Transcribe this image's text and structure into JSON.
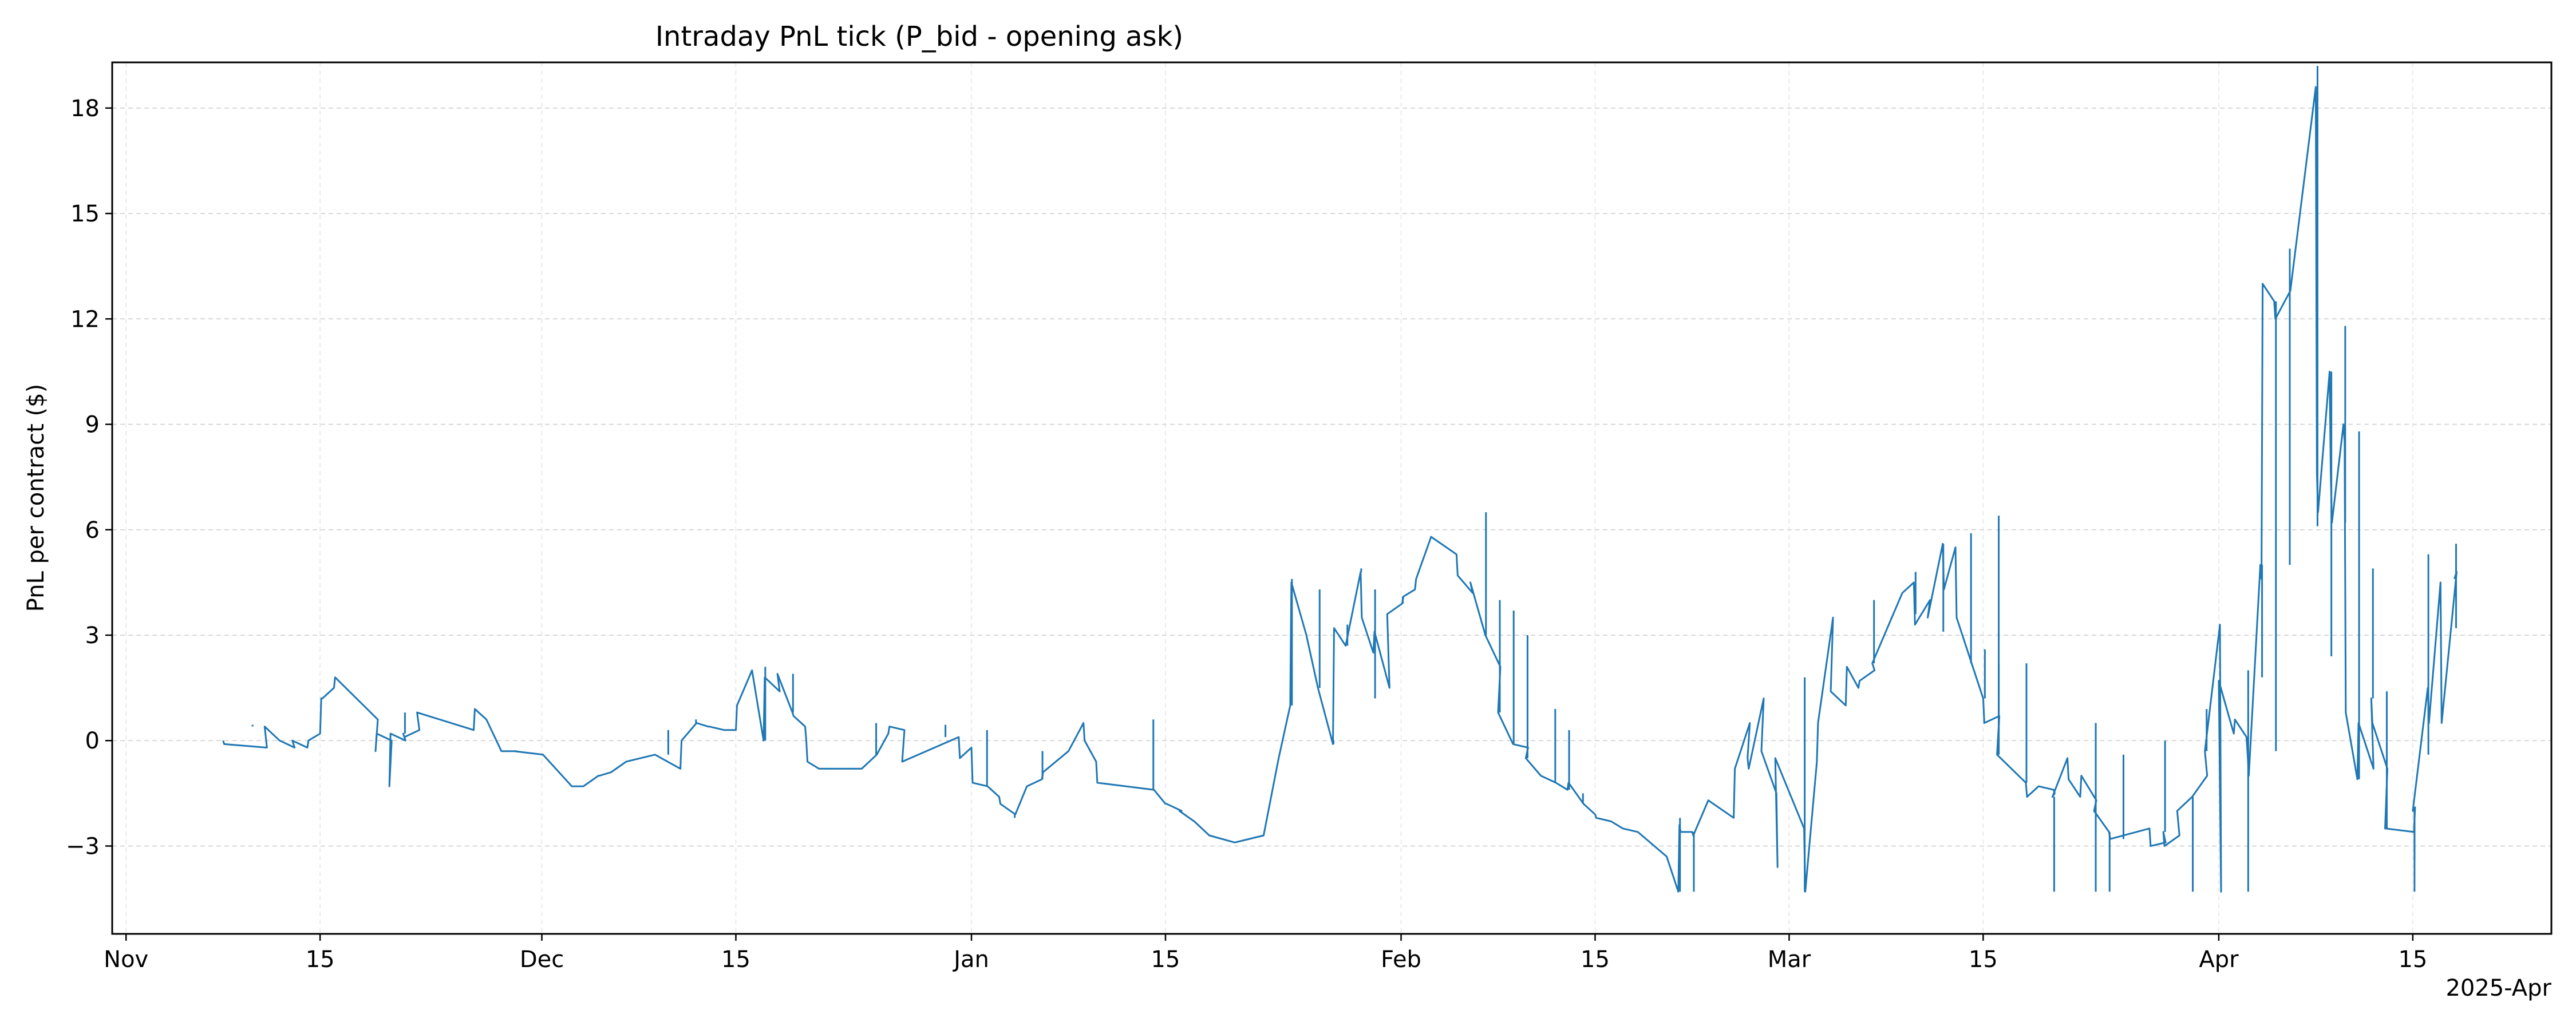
{
  "chart_data": {
    "type": "line",
    "title": "Intraday PnL tick (P_bid - opening ask)",
    "xlabel": "",
    "ylabel": "PnL per contract ($)",
    "x_offset_label": "2025-Apr",
    "x_type": "date",
    "xlim": [
      "2024-10-31",
      "2025-04-25"
    ],
    "ylim": [
      -5.5,
      19.3
    ],
    "x_ticks": [
      {
        "date": "2024-11-01",
        "label": "Nov"
      },
      {
        "date": "2024-11-15",
        "label": "15"
      },
      {
        "date": "2024-12-01",
        "label": "Dec"
      },
      {
        "date": "2024-12-15",
        "label": "15"
      },
      {
        "date": "2025-01-01",
        "label": "Jan"
      },
      {
        "date": "2025-01-15",
        "label": "15"
      },
      {
        "date": "2025-02-01",
        "label": "Feb"
      },
      {
        "date": "2025-02-15",
        "label": "15"
      },
      {
        "date": "2025-03-01",
        "label": "Mar"
      },
      {
        "date": "2025-03-15",
        "label": "15"
      },
      {
        "date": "2025-04-01",
        "label": "Apr"
      },
      {
        "date": "2025-04-15",
        "label": "15"
      }
    ],
    "y_ticks": [
      {
        "value": -3,
        "label": "−3"
      },
      {
        "value": 0,
        "label": "0"
      },
      {
        "value": 3,
        "label": "3"
      },
      {
        "value": 6,
        "label": "6"
      },
      {
        "value": 9,
        "label": "9"
      },
      {
        "value": 12,
        "label": "12"
      },
      {
        "value": 15,
        "label": "15"
      },
      {
        "value": 18,
        "label": "18"
      }
    ],
    "grid": true,
    "line_color": "#1f77b4",
    "series": [
      {
        "x": [
          "2024-11-08",
          "2024-11-08",
          "2024-11-11",
          "2024-11-11",
          "2024-11-12",
          "2024-11-13",
          "2024-11-13",
          "2024-11-14",
          "2024-11-14",
          "2024-11-15",
          "2024-11-15",
          "2024-11-15",
          "2024-11-16",
          "2024-11-16",
          "2024-11-19",
          "2024-11-19",
          "2024-11-19",
          "2024-11-20",
          "2024-11-20",
          "2024-11-20",
          "2024-11-21",
          "2024-11-21",
          "2024-11-21",
          "2024-11-22",
          "2024-11-22",
          "2024-11-26",
          "2024-11-26",
          "2024-11-27",
          "2024-11-28",
          "2024-11-29",
          "2024-11-29",
          "2024-12-01",
          "2024-12-03",
          "2024-12-04",
          "2024-12-05",
          "2024-12-05",
          "2024-12-06",
          "2024-12-07",
          "2024-12-09",
          "2024-12-11",
          "2024-12-11",
          "2024-12-12",
          "2024-12-13",
          "2024-12-13",
          "2024-12-14",
          "2024-12-15",
          "2024-12-15",
          "2024-12-16",
          "2024-12-17",
          "2024-12-17",
          "2024-12-18",
          "2024-12-18",
          "2024-12-19",
          "2024-12-19",
          "2024-12-20",
          "2024-12-20",
          "2024-12-20",
          "2024-12-21",
          "2024-12-24",
          "2024-12-25",
          "2024-12-26",
          "2024-12-26",
          "2024-12-27",
          "2024-12-27",
          "2024-12-31",
          "2024-12-31",
          "2025-01-01",
          "2025-01-01",
          "2025-01-02",
          "2025-01-03",
          "2025-01-03",
          "2025-01-04",
          "2025-01-05",
          "2025-01-06",
          "2025-01-06",
          "2025-01-08",
          "2025-01-09",
          "2025-01-09",
          "2025-01-10",
          "2025-01-10",
          "2025-01-14",
          "2025-01-15",
          "2025-01-15",
          "2025-01-16",
          "2025-01-16",
          "2025-01-17",
          "2025-01-18",
          "2025-01-20",
          "2025-01-22",
          "2025-01-23",
          "2025-01-24",
          "2025-01-24",
          "2025-01-25",
          "2025-01-26",
          "2025-01-27",
          "2025-01-27",
          "2025-01-28",
          "2025-01-29",
          "2025-01-29",
          "2025-01-30",
          "2025-01-30",
          "2025-01-31",
          "2025-01-31",
          "2025-02-01",
          "2025-02-01",
          "2025-02-02",
          "2025-02-02",
          "2025-02-03",
          "2025-02-05",
          "2025-02-05",
          "2025-02-06",
          "2025-02-06",
          "2025-02-07",
          "2025-02-08",
          "2025-02-08",
          "2025-02-09",
          "2025-02-10",
          "2025-02-10",
          "2025-02-11",
          "2025-02-12",
          "2025-02-13",
          "2025-02-13",
          "2025-02-14",
          "2025-02-15",
          "2025-02-15",
          "2025-02-16",
          "2025-02-17",
          "2025-02-18",
          "2025-02-20",
          "2025-02-21",
          "2025-02-21",
          "2025-02-21",
          "2025-02-22",
          "2025-02-22",
          "2025-02-23",
          "2025-02-25",
          "2025-02-25",
          "2025-02-26",
          "2025-02-26",
          "2025-02-26",
          "2025-02-27",
          "2025-02-27",
          "2025-02-28",
          "2025-02-28",
          "2025-02-28",
          "2025-03-02",
          "2025-03-02",
          "2025-03-03",
          "2025-03-03",
          "2025-03-04",
          "2025-03-04",
          "2025-03-05",
          "2025-03-05",
          "2025-03-06",
          "2025-03-06",
          "2025-03-07",
          "2025-03-07",
          "2025-03-08",
          "2025-03-09",
          "2025-03-10",
          "2025-03-10",
          "2025-03-11",
          "2025-03-11",
          "2025-03-12",
          "2025-03-12",
          "2025-03-13",
          "2025-03-13",
          "2025-03-14",
          "2025-03-15",
          "2025-03-15",
          "2025-03-16",
          "2025-03-16",
          "2025-03-18",
          "2025-03-18",
          "2025-03-19",
          "2025-03-20",
          "2025-03-20",
          "2025-03-20",
          "2025-03-21",
          "2025-03-21",
          "2025-03-22",
          "2025-03-22",
          "2025-03-23",
          "2025-03-23",
          "2025-03-24",
          "2025-03-24",
          "2025-03-27",
          "2025-03-27",
          "2025-03-28",
          "2025-03-28",
          "2025-03-28",
          "2025-03-29",
          "2025-03-29",
          "2025-03-30",
          "2025-03-31",
          "2025-03-31",
          "2025-04-01",
          "2025-04-01",
          "2025-04-01",
          "2025-04-02",
          "2025-04-02",
          "2025-04-03",
          "2025-04-03",
          "2025-04-03",
          "2025-04-04",
          "2025-04-04",
          "2025-04-04",
          "2025-04-05",
          "2025-04-05",
          "2025-04-06",
          "2025-04-08",
          "2025-04-08",
          "2025-04-08",
          "2025-04-09",
          "2025-04-09",
          "2025-04-09",
          "2025-04-10",
          "2025-04-10",
          "2025-04-10",
          "2025-04-11",
          "2025-04-11",
          "2025-04-12",
          "2025-04-12",
          "2025-04-12",
          "2025-04-13",
          "2025-04-13",
          "2025-04-15",
          "2025-04-15",
          "2025-04-15",
          "2025-04-16",
          "2025-04-16",
          "2025-04-17",
          "2025-04-17",
          "2025-04-18",
          "2025-04-18"
        ],
        "y": [
          0.0,
          -0.1,
          -0.2,
          0.4,
          0.0,
          -0.2,
          0.0,
          -0.2,
          0.0,
          0.2,
          1.2,
          1.2,
          1.5,
          1.8,
          0.6,
          -0.3,
          0.2,
          0.0,
          -1.3,
          0.2,
          0.0,
          0.2,
          0.1,
          0.3,
          0.8,
          0.3,
          0.9,
          0.6,
          -0.3,
          -0.3,
          -0.3,
          -0.4,
          -1.3,
          -1.3,
          -1.0,
          -1.0,
          -0.9,
          -0.6,
          -0.4,
          -0.8,
          0.0,
          0.5,
          0.4,
          0.4,
          0.3,
          0.3,
          1.0,
          2.0,
          0.0,
          1.8,
          1.4,
          1.9,
          0.8,
          0.7,
          0.4,
          0.0,
          -0.6,
          -0.8,
          -0.8,
          -0.4,
          0.2,
          0.4,
          0.3,
          -0.6,
          0.1,
          -0.5,
          -0.2,
          -1.2,
          -1.3,
          -1.6,
          -1.8,
          -2.1,
          -1.3,
          -1.1,
          -0.9,
          -0.3,
          0.5,
          0.0,
          -0.6,
          -1.2,
          -1.4,
          -1.8,
          -1.8,
          -2.0,
          -2.0,
          -2.3,
          -2.7,
          -2.9,
          -2.7,
          -0.5,
          1.0,
          4.5,
          3.0,
          1.5,
          -0.1,
          3.2,
          2.7,
          4.8,
          3.5,
          2.5,
          3.1,
          1.5,
          3.6,
          3.9,
          4.1,
          4.3,
          4.6,
          5.8,
          5.3,
          4.7,
          4.2,
          4.5,
          3.0,
          2.1,
          0.8,
          -0.1,
          -0.2,
          -0.5,
          -1.0,
          -1.2,
          -1.4,
          -1.2,
          -1.8,
          -2.1,
          -2.2,
          -2.3,
          -2.5,
          -2.6,
          -3.3,
          -4.3,
          -2.4,
          -2.6,
          -2.6,
          -2.7,
          -1.7,
          -2.2,
          -0.8,
          0.5,
          -0.5,
          -0.8,
          1.2,
          -0.3,
          -1.5,
          -3.6,
          -0.5,
          -2.5,
          -4.3,
          -0.6,
          0.5,
          3.5,
          1.4,
          1.0,
          2.1,
          1.5,
          1.7,
          2.0,
          2.2,
          3.2,
          4.2,
          4.5,
          3.3,
          4.0,
          3.5,
          5.6,
          4.3,
          5.5,
          3.5,
          2.2,
          1.2,
          0.5,
          0.7,
          -0.4,
          -1.2,
          -1.6,
          -1.3,
          -1.4,
          -1.5,
          -1.6,
          -0.5,
          -1.1,
          -1.6,
          -1.0,
          -1.7,
          -2.0,
          -2.6,
          -2.8,
          -2.5,
          -3.0,
          -2.9,
          -2.6,
          -3.0,
          -2.7,
          -2.0,
          -1.6,
          -1.0,
          -0.3,
          3.3,
          -4.3,
          1.7,
          0.2,
          0.6,
          0.1,
          -0.4,
          -1.0,
          5.0,
          4.6,
          13.0,
          12.5,
          12.0,
          12.8,
          18.6,
          7.6,
          6.5,
          10.5,
          7.6,
          6.2,
          9.0,
          8.5,
          0.8,
          -1.1,
          0.5,
          -0.8,
          1.2,
          0.5,
          -0.8,
          -2.5,
          -2.6,
          -1.9,
          -2.0,
          1.5,
          0.5,
          4.5,
          0.5,
          4.8,
          4.6
        ],
        "spikes": [
          [
            "2024-11-10",
            0.45
          ],
          [
            "2024-11-21",
            0.8
          ],
          [
            "2024-12-10",
            0.3
          ],
          [
            "2024-12-12",
            0.6
          ],
          [
            "2024-12-17",
            2.1
          ],
          [
            "2024-12-19",
            1.9
          ],
          [
            "2024-12-25",
            0.5
          ],
          [
            "2024-12-30",
            0.45
          ],
          [
            "2025-01-02",
            0.3
          ],
          [
            "2025-01-04",
            -2.2
          ],
          [
            "2025-01-06",
            -0.3
          ],
          [
            "2025-01-14",
            0.6
          ],
          [
            "2025-01-24",
            4.6
          ],
          [
            "2025-01-26",
            4.3
          ],
          [
            "2025-01-27",
            0.0
          ],
          [
            "2025-01-28",
            3.3
          ],
          [
            "2025-01-29",
            4.9
          ],
          [
            "2025-01-30",
            4.3
          ],
          [
            "2025-01-30",
            1.2
          ],
          [
            "2025-02-01",
            4.1
          ],
          [
            "2025-02-07",
            6.5
          ],
          [
            "2025-02-08",
            4.0
          ],
          [
            "2025-02-09",
            3.7
          ],
          [
            "2025-02-10",
            3.0
          ],
          [
            "2025-02-12",
            0.9
          ],
          [
            "2025-02-13",
            0.3
          ],
          [
            "2025-02-14",
            -1.5
          ],
          [
            "2025-02-21",
            -2.2
          ],
          [
            "2025-02-22",
            -4.3
          ],
          [
            "2025-03-02",
            1.8
          ],
          [
            "2025-03-02",
            -4.3
          ],
          [
            "2025-03-07",
            4.0
          ],
          [
            "2025-03-10",
            3.6
          ],
          [
            "2025-03-10",
            4.8
          ],
          [
            "2025-03-12",
            3.1
          ],
          [
            "2025-03-14",
            5.9
          ],
          [
            "2025-03-15",
            2.6
          ],
          [
            "2025-03-16",
            6.4
          ],
          [
            "2025-03-16",
            2.2
          ],
          [
            "2025-03-18",
            2.2
          ],
          [
            "2025-03-20",
            -4.3
          ],
          [
            "2025-03-23",
            0.5
          ],
          [
            "2025-03-23",
            -4.3
          ],
          [
            "2025-03-24",
            -4.3
          ],
          [
            "2025-03-25",
            -0.4
          ],
          [
            "2025-03-28",
            0.0
          ],
          [
            "2025-03-30",
            -4.3
          ],
          [
            "2025-03-31",
            0.9
          ],
          [
            "2025-04-03",
            -4.3
          ],
          [
            "2025-04-03",
            2.0
          ],
          [
            "2025-04-04",
            1.8
          ],
          [
            "2025-04-05",
            -0.3
          ],
          [
            "2025-04-06",
            5.0
          ],
          [
            "2025-04-06",
            14.0
          ],
          [
            "2025-04-08",
            19.2
          ],
          [
            "2025-04-08",
            6.1
          ],
          [
            "2025-04-09",
            2.4
          ],
          [
            "2025-04-10",
            11.8
          ],
          [
            "2025-04-10",
            6.2
          ],
          [
            "2025-04-11",
            8.8
          ],
          [
            "2025-04-12",
            4.9
          ],
          [
            "2025-04-13",
            1.4
          ],
          [
            "2025-04-13",
            -0.3
          ],
          [
            "2025-04-15",
            -4.3
          ],
          [
            "2025-04-15",
            -3.4
          ],
          [
            "2025-04-16",
            -0.4
          ],
          [
            "2025-04-16",
            5.3
          ],
          [
            "2025-04-18",
            5.6
          ],
          [
            "2025-04-18",
            3.2
          ]
        ]
      }
    ]
  }
}
